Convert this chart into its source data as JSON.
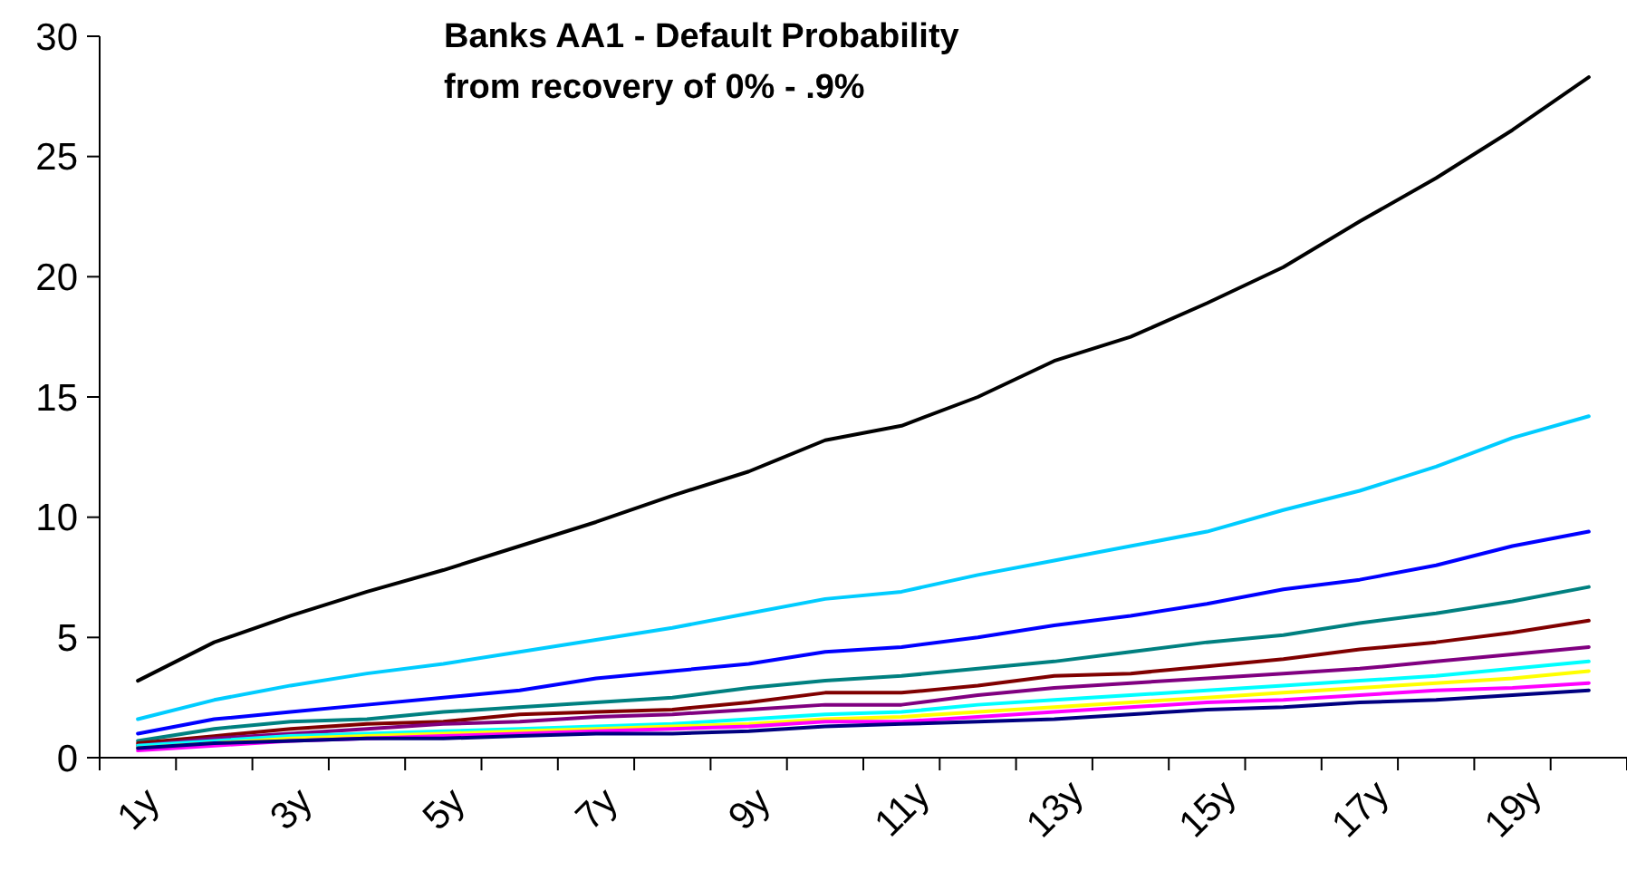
{
  "chart_data": {
    "type": "line",
    "title": "Banks AA1 - Default Probability\nfrom recovery of 0% - .9%",
    "categories": [
      "1y",
      null,
      "3y",
      null,
      "5y",
      null,
      "7y",
      null,
      "9y",
      null,
      "11y",
      null,
      "13y",
      null,
      "15y",
      null,
      "17y",
      null,
      "19y",
      null
    ],
    "ylim": [
      0,
      30
    ],
    "yticks": [
      0,
      5,
      10,
      15,
      20,
      25,
      30
    ],
    "grid": false,
    "marker": "none",
    "line_style": "solid",
    "series": [
      {
        "color": "#000000",
        "values": [
          3.2,
          4.8,
          5.9,
          6.9,
          7.8,
          8.8,
          9.8,
          10.9,
          11.9,
          13.2,
          13.8,
          15.0,
          16.5,
          17.5,
          18.9,
          20.4,
          22.3,
          24.1,
          26.1,
          28.3
        ]
      },
      {
        "color": "#00ccff",
        "values": [
          1.6,
          2.4,
          3.0,
          3.5,
          3.9,
          4.4,
          4.9,
          5.4,
          6.0,
          6.6,
          6.9,
          7.6,
          8.2,
          8.8,
          9.4,
          10.3,
          11.1,
          12.1,
          13.3,
          14.2
        ]
      },
      {
        "color": "#0000ff",
        "values": [
          1.0,
          1.6,
          1.9,
          2.2,
          2.5,
          2.8,
          3.3,
          3.6,
          3.9,
          4.4,
          4.6,
          5.0,
          5.5,
          5.9,
          6.4,
          7.0,
          7.4,
          8.0,
          8.8,
          9.4
        ]
      },
      {
        "color": "#008080",
        "values": [
          0.7,
          1.2,
          1.5,
          1.6,
          1.9,
          2.1,
          2.3,
          2.5,
          2.9,
          3.2,
          3.4,
          3.7,
          4.0,
          4.4,
          4.8,
          5.1,
          5.6,
          6.0,
          6.5,
          7.1
        ]
      },
      {
        "color": "#800000",
        "values": [
          0.6,
          0.9,
          1.2,
          1.4,
          1.5,
          1.8,
          1.9,
          2.0,
          2.3,
          2.7,
          2.7,
          3.0,
          3.4,
          3.5,
          3.8,
          4.1,
          4.5,
          4.8,
          5.2,
          5.7
        ]
      },
      {
        "color": "#800080",
        "values": [
          0.5,
          0.8,
          1.0,
          1.2,
          1.4,
          1.5,
          1.7,
          1.8,
          2.0,
          2.2,
          2.2,
          2.6,
          2.9,
          3.1,
          3.3,
          3.5,
          3.7,
          4.0,
          4.3,
          4.6
        ]
      },
      {
        "color": "#00ffff",
        "values": [
          0.5,
          0.7,
          0.9,
          1.0,
          1.1,
          1.2,
          1.3,
          1.4,
          1.6,
          1.8,
          1.9,
          2.2,
          2.4,
          2.6,
          2.8,
          3.0,
          3.2,
          3.4,
          3.7,
          4.0
        ]
      },
      {
        "color": "#ffff00",
        "values": [
          0.4,
          0.6,
          0.8,
          0.9,
          1.0,
          1.1,
          1.2,
          1.3,
          1.4,
          1.6,
          1.7,
          1.9,
          2.1,
          2.3,
          2.5,
          2.7,
          2.9,
          3.1,
          3.3,
          3.6
        ]
      },
      {
        "color": "#ff00ff",
        "values": [
          0.3,
          0.5,
          0.7,
          0.8,
          0.9,
          1.0,
          1.1,
          1.2,
          1.3,
          1.5,
          1.5,
          1.7,
          1.9,
          2.1,
          2.3,
          2.4,
          2.6,
          2.8,
          2.9,
          3.1
        ]
      },
      {
        "color": "#000080",
        "values": [
          0.4,
          0.6,
          0.7,
          0.8,
          0.8,
          0.9,
          1.0,
          1.0,
          1.1,
          1.3,
          1.4,
          1.5,
          1.6,
          1.8,
          2.0,
          2.1,
          2.3,
          2.4,
          2.6,
          2.8
        ]
      }
    ]
  }
}
